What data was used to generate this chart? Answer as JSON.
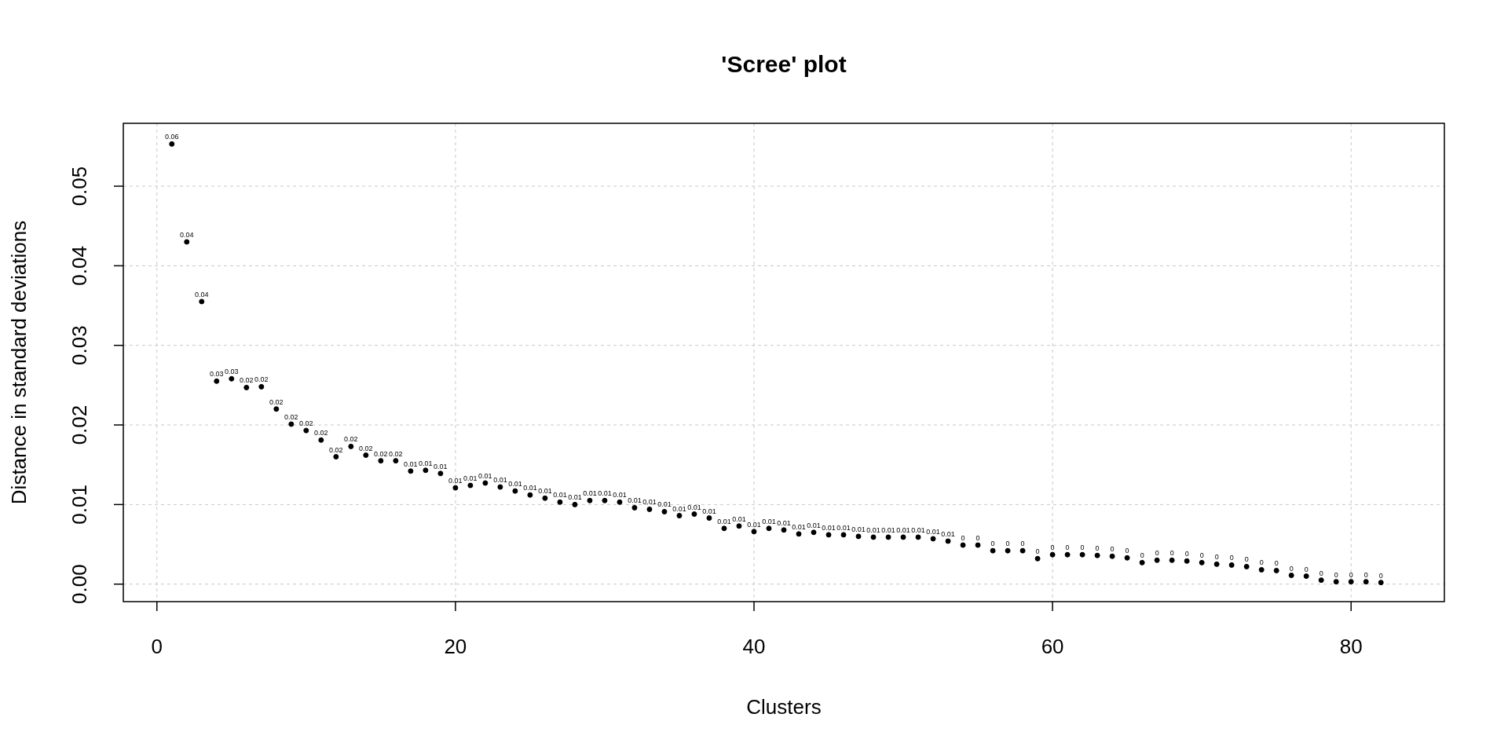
{
  "chart_data": {
    "type": "scatter",
    "title": "'Scree' plot",
    "xlabel": "Clusters",
    "ylabel": "Distance in standard deviations",
    "x": [
      1,
      2,
      3,
      4,
      5,
      6,
      7,
      8,
      9,
      10,
      11,
      12,
      13,
      14,
      15,
      16,
      17,
      18,
      19,
      20,
      21,
      22,
      23,
      24,
      25,
      26,
      27,
      28,
      29,
      30,
      31,
      32,
      33,
      34,
      35,
      36,
      37,
      38,
      39,
      40,
      41,
      42,
      43,
      44,
      45,
      46,
      47,
      48,
      49,
      50,
      51,
      52,
      53,
      54,
      55,
      56,
      57,
      58,
      59,
      60,
      61,
      62,
      63,
      64,
      65,
      66,
      67,
      68,
      69,
      70,
      71,
      72,
      73,
      74,
      75,
      76,
      77,
      78,
      79,
      80,
      81,
      82
    ],
    "values": [
      0.0553,
      0.043,
      0.0355,
      0.0255,
      0.0258,
      0.0247,
      0.0248,
      0.022,
      0.0201,
      0.0193,
      0.0181,
      0.016,
      0.0173,
      0.0162,
      0.0155,
      0.0155,
      0.0142,
      0.0143,
      0.0139,
      0.0121,
      0.0124,
      0.0127,
      0.0122,
      0.0117,
      0.0112,
      0.0108,
      0.0103,
      0.01,
      0.0105,
      0.0105,
      0.0103,
      0.0096,
      0.0094,
      0.0091,
      0.0086,
      0.0088,
      0.0083,
      0.007,
      0.0073,
      0.0066,
      0.007,
      0.0068,
      0.0063,
      0.0065,
      0.0062,
      0.0062,
      0.006,
      0.0059,
      0.0059,
      0.0059,
      0.0059,
      0.0057,
      0.0054,
      0.0049,
      0.0049,
      0.0042,
      0.0042,
      0.0042,
      0.0032,
      0.0037,
      0.0037,
      0.0037,
      0.0036,
      0.0035,
      0.0033,
      0.0027,
      0.003,
      0.003,
      0.0029,
      0.0027,
      0.0025,
      0.0024,
      0.0022,
      0.0018,
      0.0017,
      0.0011,
      0.001,
      0.0005,
      0.0003,
      0.0003,
      0.0003,
      0.0002
    ],
    "value_labels": [
      "0.06",
      "0.04",
      "0.04",
      "0.03",
      "0.03",
      "0.02",
      "0.02",
      "0.02",
      "0.02",
      "0.02",
      "0.02",
      "0.02",
      "0.02",
      "0.02",
      "0.02",
      "0.02",
      "0.01",
      "0.01",
      "0.01",
      "0.01",
      "0.01",
      "0.01",
      "0.01",
      "0.01",
      "0.01",
      "0.01",
      "0.01",
      "0.01",
      "0.01",
      "0.01",
      "0.01",
      "0.01",
      "0.01",
      "0.01",
      "0.01",
      "0.01",
      "0.01",
      "0.01",
      "0.01",
      "0.01",
      "0.01",
      "0.01",
      "0.01",
      "0.01",
      "0.01",
      "0.01",
      "0.01",
      "0.01",
      "0.01",
      "0.01",
      "0.01",
      "0.01",
      "0.01",
      "0",
      "0",
      "0",
      "0",
      "0",
      "0",
      "0",
      "0",
      "0",
      "0",
      "0",
      "0",
      "0",
      "0",
      "0",
      "0",
      "0",
      "0",
      "0",
      "0",
      "0",
      "0",
      "0",
      "0",
      "0",
      "0",
      "0",
      "0",
      "0"
    ],
    "marker": "circle",
    "color": "#000000",
    "xlim": [
      -2.25,
      86.25
    ],
    "xticks": [
      0,
      20,
      40,
      60,
      80
    ],
    "ylim": [
      -0.0022,
      0.0579
    ],
    "yticks": [
      {
        "value": 0,
        "label": "0.00"
      },
      {
        "value": 0.01,
        "label": "0.01"
      },
      {
        "value": 0.02,
        "label": "0.02"
      },
      {
        "value": 0.03,
        "label": "0.03"
      },
      {
        "value": 0.04,
        "label": "0.04"
      },
      {
        "value": 0.05,
        "label": "0.05"
      }
    ],
    "grid": true
  }
}
